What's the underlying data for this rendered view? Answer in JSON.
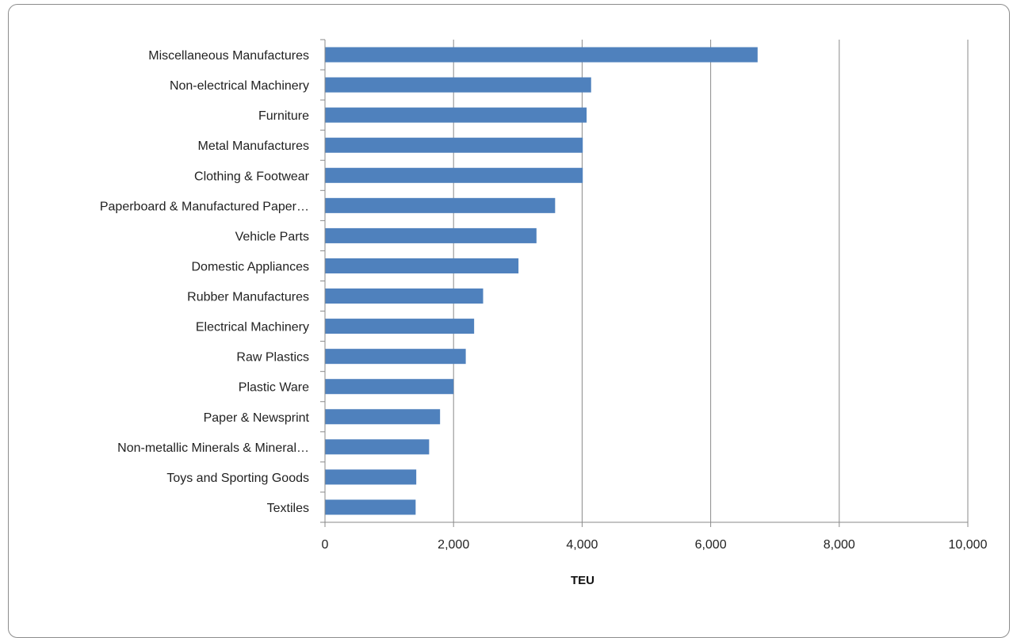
{
  "chart_data": {
    "type": "bar",
    "orientation": "horizontal",
    "categories": [
      "Miscellaneous Manufactures",
      "Non-electrical Machinery",
      "Furniture",
      "Metal Manufactures",
      "Clothing & Footwear",
      "Paperboard & Manufactured Paper…",
      "Vehicle Parts",
      "Domestic Appliances",
      "Rubber Manufactures",
      "Electrical Machinery",
      "Raw Plastics",
      "Plastic Ware",
      "Paper & Newsprint",
      "Non-metallic Minerals & Mineral…",
      "Toys and Sporting Goods",
      "Textiles"
    ],
    "values": [
      6730,
      4140,
      4070,
      4010,
      4010,
      3580,
      3290,
      3010,
      2460,
      2320,
      2190,
      2000,
      1790,
      1620,
      1420,
      1410
    ],
    "title": "",
    "xlabel": "TEU",
    "ylabel": "",
    "xlim": [
      0,
      10000
    ],
    "xticks": [
      0,
      2000,
      4000,
      6000,
      8000,
      10000
    ],
    "xtick_labels": [
      "0",
      "2,000",
      "4,000",
      "6,000",
      "8,000",
      "10,000"
    ],
    "grid": "vertical",
    "legend": "none",
    "bar_color": "#4f81bd"
  }
}
